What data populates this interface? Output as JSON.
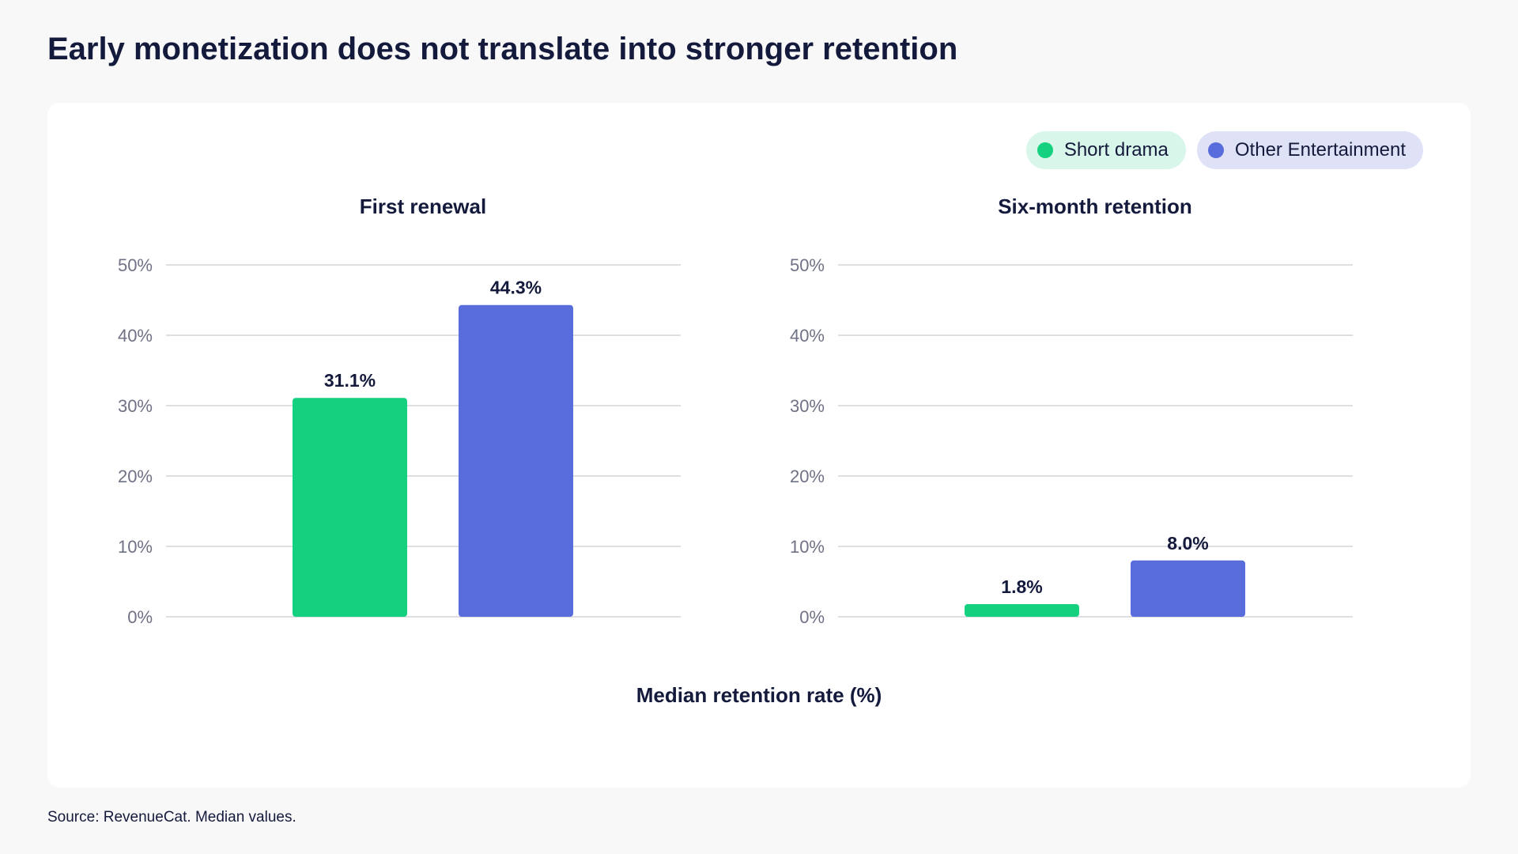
{
  "title": "Early monetization does not translate into stronger retention",
  "legend": {
    "items": [
      {
        "label": "Short drama",
        "color": "#13d17f",
        "background": "#d8f6e9"
      },
      {
        "label": "Other Entertainment",
        "color": "#586cdb",
        "background": "#dfe2f7"
      }
    ]
  },
  "x_axis_caption": "Median retention rate (%)",
  "source": "Source: RevenueCat. Median values.",
  "chart_data": [
    {
      "type": "bar",
      "title": "First renewal",
      "ylim": [
        0,
        50
      ],
      "y_ticks": [
        "0%",
        "10%",
        "20%",
        "30%",
        "40%",
        "50%"
      ],
      "grid": true,
      "series": [
        {
          "name": "Short drama",
          "values": [
            31.1
          ],
          "labels": [
            "31.1%"
          ],
          "color": "#13d17f"
        },
        {
          "name": "Other Entertainment",
          "values": [
            44.3
          ],
          "labels": [
            "44.3%"
          ],
          "color": "#586cdb"
        }
      ]
    },
    {
      "type": "bar",
      "title": "Six-month retention",
      "ylim": [
        0,
        50
      ],
      "y_ticks": [
        "0%",
        "10%",
        "20%",
        "30%",
        "40%",
        "50%"
      ],
      "grid": true,
      "series": [
        {
          "name": "Short drama",
          "values": [
            1.8
          ],
          "labels": [
            "1.8%"
          ],
          "color": "#13d17f"
        },
        {
          "name": "Other Entertainment",
          "values": [
            8.0
          ],
          "labels": [
            "8.0%"
          ],
          "color": "#586cdb"
        }
      ]
    }
  ]
}
